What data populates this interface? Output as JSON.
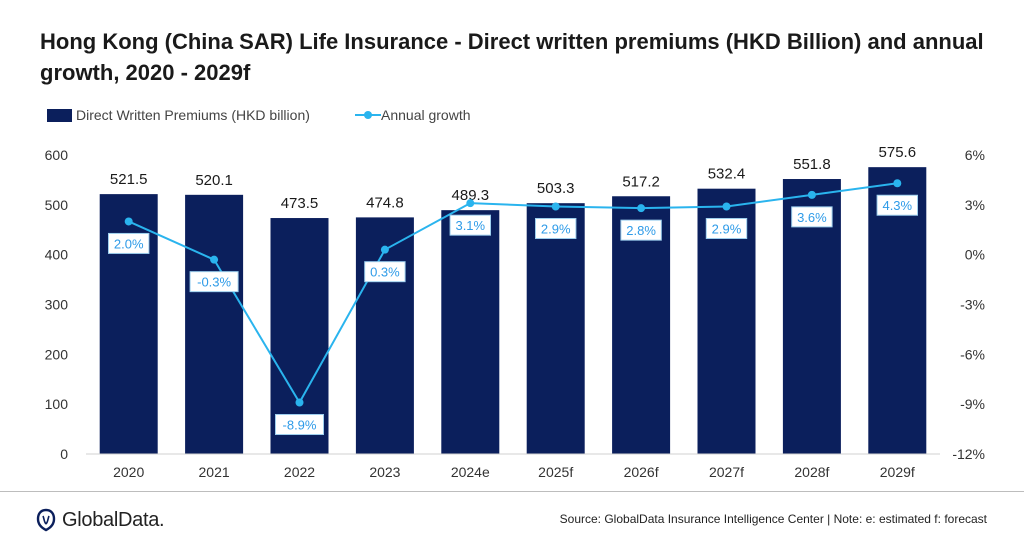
{
  "title": "Hong Kong (China SAR) Life Insurance - Direct written premiums (HKD Billion) and annual growth, 2020 - 2029f",
  "legend": {
    "bar_label": "Direct Written Premiums (HKD billion)",
    "line_label": "Annual growth"
  },
  "colors": {
    "bar": "#0b1f5c",
    "line": "#2ab4ee",
    "label_text": "#2e9be8"
  },
  "footer": {
    "logo": "GlobalData.",
    "source": "Source: GlobalData Insurance Intelligence Center | Note: e: estimated f: forecast"
  },
  "chart_data": {
    "type": "bar",
    "categories": [
      "2020",
      "2021",
      "2022",
      "2023",
      "2024e",
      "2025f",
      "2026f",
      "2027f",
      "2028f",
      "2029f"
    ],
    "series": [
      {
        "name": "Direct Written Premiums (HKD billion)",
        "type": "bar",
        "axis": "left",
        "values": [
          521.5,
          520.1,
          473.5,
          474.8,
          489.3,
          503.3,
          517.2,
          532.4,
          551.8,
          575.6
        ],
        "labels": [
          "521.5",
          "520.1",
          "473.5",
          "474.8",
          "489.3",
          "503.3",
          "517.2",
          "532.4",
          "551.8",
          "575.6"
        ]
      },
      {
        "name": "Annual growth",
        "type": "line",
        "axis": "right",
        "values": [
          2.0,
          -0.3,
          -8.9,
          0.3,
          3.1,
          2.9,
          2.8,
          2.9,
          3.6,
          4.3
        ],
        "labels": [
          "2.0%",
          "-0.3%",
          "-8.9%",
          "0.3%",
          "3.1%",
          "2.9%",
          "2.8%",
          "2.9%",
          "3.6%",
          "4.3%"
        ]
      }
    ],
    "ylim_left": [
      0,
      600
    ],
    "yticks_left": [
      "0",
      "100",
      "200",
      "300",
      "400",
      "500",
      "600"
    ],
    "ylim_right": [
      -12,
      6
    ],
    "yticks_right": [
      "-12%",
      "-9%",
      "-6%",
      "-3%",
      "0%",
      "3%",
      "6%"
    ],
    "legend_position": "top-left",
    "grid": false
  }
}
